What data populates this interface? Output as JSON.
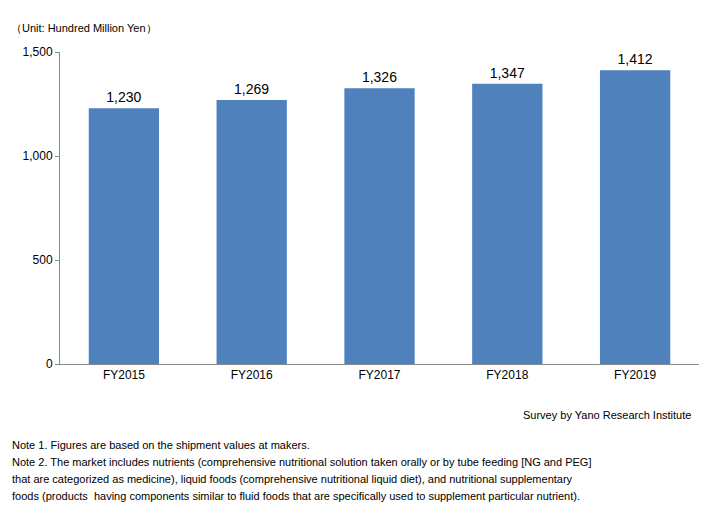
{
  "chart_data": {
    "type": "bar",
    "ylabel": "（Unit: Hundred Million Yen）",
    "categories": [
      "FY2015",
      "FY2016",
      "FY2017",
      "FY2018",
      "FY2019"
    ],
    "values": [
      1230,
      1269,
      1326,
      1347,
      1412
    ],
    "value_labels": [
      "1,230",
      "1,269",
      "1,326",
      "1,347",
      "1,412"
    ],
    "data_labels": true,
    "color": "#4f81bd",
    "ylim": [
      0,
      1500
    ],
    "yticks": [
      0,
      500,
      {
        "value": 1000,
        "label": "1,000"
      },
      {
        "value": 1500,
        "label": "1,500"
      }
    ],
    "grid": false,
    "source": "Survey by Yano Research Institute",
    "notes": [
      "Note 1. Figures are based on the shipment values at makers.",
      "Note 2. The market includes nutrients (comprehensive nutritional solution taken orally or by tube feeding [NG and PEG]",
      "that are categorized as medicine), liquid foods (comprehensive nutritional liquid diet), and nutritional supplementary",
      "foods (products  having components similar to fluid foods that are specifically used to supplement particular nutrient)."
    ]
  }
}
